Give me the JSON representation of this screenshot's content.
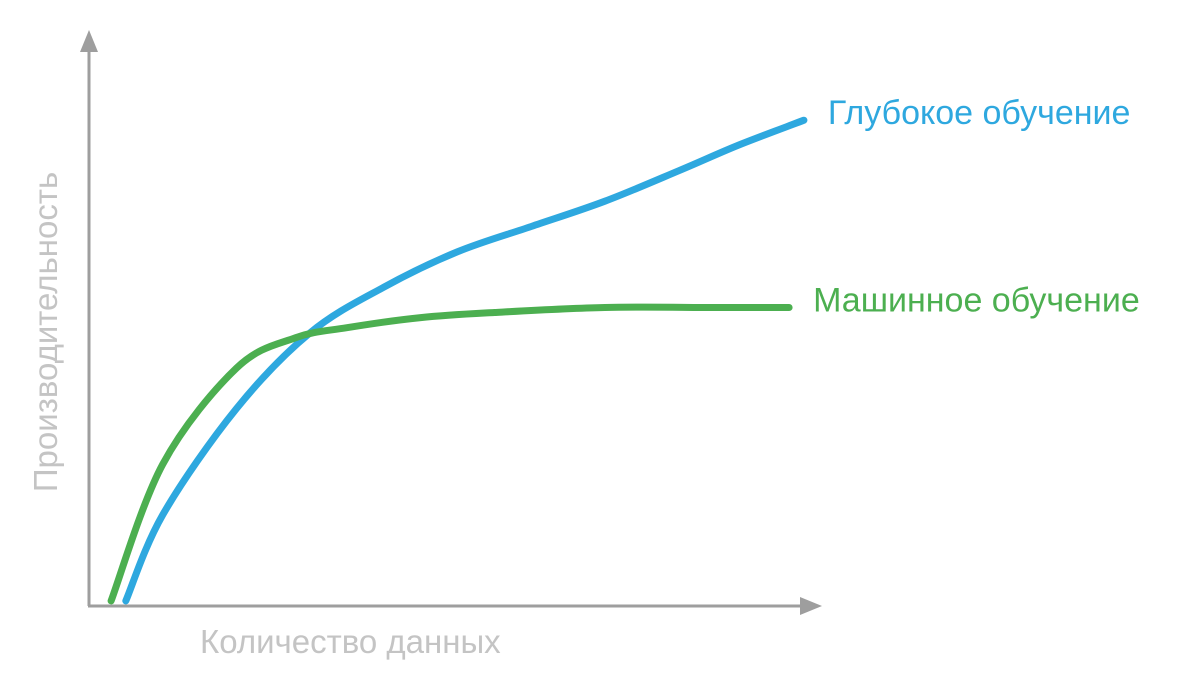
{
  "chart_data": {
    "type": "line",
    "title": "",
    "xlabel": "Количество данных",
    "ylabel": "Производительность",
    "xlim": [
      0,
      100
    ],
    "ylim": [
      0,
      100
    ],
    "grid": false,
    "legend": "inline-right",
    "axis_color": "#9e9e9e",
    "label_color": "#c4c4c4",
    "series": [
      {
        "name": "Глубокое обучение",
        "color": "#2ea8df",
        "x": [
          5,
          10,
          20,
          30,
          40,
          50,
          60,
          70,
          80,
          88,
          97
        ],
        "y": [
          1,
          18,
          39,
          54,
          63,
          70,
          75,
          80,
          86,
          91,
          96
        ]
      },
      {
        "name": "Машинное обучение",
        "color": "#4caf50",
        "x": [
          3,
          10,
          20,
          28,
          35,
          45,
          55,
          70,
          85,
          95
        ],
        "y": [
          1,
          28,
          47,
          53,
          55,
          57,
          58,
          59,
          59,
          59
        ]
      }
    ]
  }
}
